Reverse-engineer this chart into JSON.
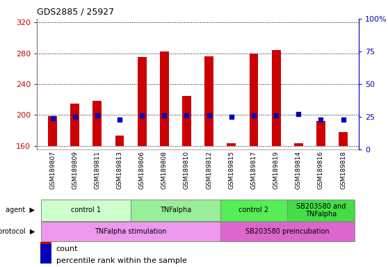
{
  "title": "GDS2885 / 25927",
  "samples": [
    "GSM189807",
    "GSM189809",
    "GSM189811",
    "GSM189813",
    "GSM189806",
    "GSM189808",
    "GSM189810",
    "GSM189812",
    "GSM189815",
    "GSM189817",
    "GSM189819",
    "GSM189814",
    "GSM189816",
    "GSM189818"
  ],
  "bar_bottoms": [
    160,
    160,
    160,
    160,
    160,
    160,
    160,
    160,
    160,
    160,
    160,
    160,
    160,
    160
  ],
  "bar_tops": [
    198,
    215,
    218,
    173,
    275,
    282,
    225,
    276,
    163,
    280,
    284,
    163,
    192,
    178
  ],
  "percentile_ranks": [
    24,
    25,
    26,
    23,
    26,
    26,
    26,
    26,
    25,
    26,
    26,
    27,
    23,
    23
  ],
  "ylim_left": [
    155,
    325
  ],
  "ylim_right": [
    0,
    100
  ],
  "yticks_left": [
    160,
    200,
    240,
    280,
    320
  ],
  "yticks_right": [
    0,
    25,
    50,
    75,
    100
  ],
  "bar_color": "#cc0000",
  "percentile_color": "#0000bb",
  "left_axis_color": "#cc0000",
  "right_axis_color": "#0000bb",
  "agent_groups": [
    {
      "label": "control 1",
      "start": 0,
      "end": 3,
      "color": "#ccffcc"
    },
    {
      "label": "TNFalpha",
      "start": 4,
      "end": 7,
      "color": "#99ee99"
    },
    {
      "label": "control 2",
      "start": 8,
      "end": 10,
      "color": "#55ee55"
    },
    {
      "label": "SB203580 and\nTNFalpha",
      "start": 11,
      "end": 13,
      "color": "#44dd44"
    }
  ],
  "agent_colors": [
    "#ccffcc",
    "#99ee99",
    "#55ee55",
    "#44dd44"
  ],
  "protocol_groups": [
    {
      "label": "TNFalpha stimulation",
      "start": 0,
      "end": 7,
      "color": "#ee99ee"
    },
    {
      "label": "SB203580 preincubation",
      "start": 8,
      "end": 13,
      "color": "#dd66cc"
    }
  ],
  "protocol_colors": [
    "#ee99ee",
    "#dd66cc"
  ],
  "tick_bg_color": "#cccccc",
  "bar_width": 0.4
}
